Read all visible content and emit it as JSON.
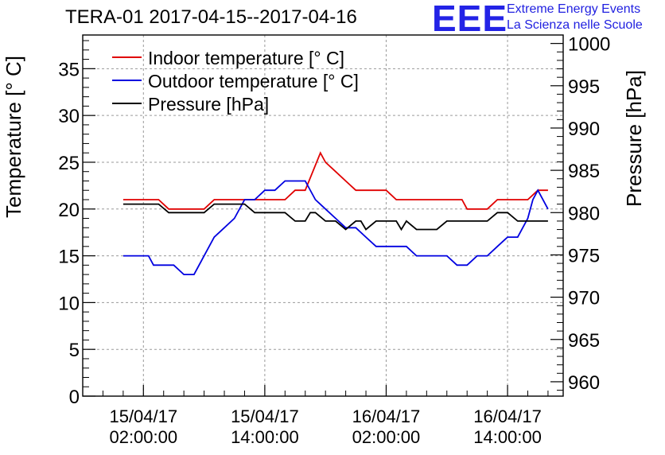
{
  "title": "TERA-01 2017-04-15--2017-04-16",
  "logo": {
    "mark": "EEE",
    "line1": "Extreme Energy Events",
    "line2": "La Scienza nelle Scuole"
  },
  "colors": {
    "indoor": "#e00000",
    "outdoor": "#0000e0",
    "pressure": "#000000",
    "logo": "#2323e6",
    "grid": "#9a9a9a"
  },
  "chart_data": {
    "type": "line",
    "title": "TERA-01 2017-04-15--2017-04-16",
    "xlabel": "",
    "ylabel": "Temperature [° C]",
    "y2label": "Pressure [hPa]",
    "xlim_hours": [
      -6,
      41.5
    ],
    "ylim": [
      0,
      38.6
    ],
    "y2lim": [
      958.3,
      1001
    ],
    "yticks": [
      0,
      5,
      10,
      15,
      20,
      25,
      30,
      35
    ],
    "y2ticks": [
      960,
      965,
      970,
      975,
      980,
      985,
      990,
      995,
      1000
    ],
    "xticks": [
      {
        "hour": 0,
        "date": "15/04/17",
        "time": "02:00:00"
      },
      {
        "hour": 12,
        "date": "15/04/17",
        "time": "14:00:00"
      },
      {
        "hour": 24,
        "date": "16/04/17",
        "time": "02:00:00"
      },
      {
        "hour": 36,
        "date": "16/04/17",
        "time": "14:00:00"
      }
    ],
    "grid": true,
    "legend_position": "top-left",
    "series": [
      {
        "name": "Indoor temperature [° C]",
        "axis": "left",
        "color": "#e00000",
        "x": [
          -2,
          1.5,
          2.5,
          6,
          7,
          8,
          10,
          14,
          15,
          16,
          17.5,
          18,
          19,
          20,
          21,
          22,
          23,
          24,
          25,
          26,
          29,
          31,
          31.5,
          32,
          32.5,
          33.5,
          34,
          35,
          36,
          37,
          38,
          39,
          40
        ],
        "values": [
          21,
          21,
          20,
          20,
          21,
          21,
          21,
          21,
          22,
          22,
          26,
          25,
          24,
          23,
          22,
          22,
          22,
          22,
          21,
          21,
          21,
          21,
          21,
          20,
          20,
          20,
          20,
          21,
          21,
          21,
          21,
          22,
          22
        ]
      },
      {
        "name": "Outdoor temperature [° C]",
        "axis": "left",
        "color": "#0000e0",
        "x": [
          -2,
          0,
          0.5,
          1,
          2,
          3,
          4,
          5,
          6,
          7,
          8,
          9,
          10,
          11,
          12,
          13,
          14,
          15,
          16,
          17,
          18,
          19,
          20,
          21,
          22,
          23,
          24,
          25,
          26,
          27,
          28,
          29,
          30,
          31,
          32,
          33,
          34,
          35,
          36,
          37,
          38,
          38.5,
          39,
          40
        ],
        "values": [
          15,
          15,
          15,
          14,
          14,
          14,
          13,
          13,
          15,
          17,
          18,
          19,
          21,
          21,
          22,
          22,
          23,
          23,
          23,
          21,
          20,
          19,
          18,
          18,
          17,
          16,
          16,
          16,
          16,
          15,
          15,
          15,
          15,
          14,
          14,
          15,
          15,
          16,
          17,
          17,
          19,
          21,
          22,
          20
        ]
      },
      {
        "name": "Pressure [hPa]",
        "axis": "right",
        "color": "#000000",
        "x": [
          -2,
          1.5,
          2.5,
          6,
          7,
          8,
          9,
          10,
          11,
          12,
          13,
          14,
          15,
          16,
          16.5,
          17,
          18,
          19,
          20,
          21,
          21.5,
          22,
          23,
          24,
          25,
          25.5,
          26,
          27,
          28,
          29,
          30,
          31,
          32,
          33,
          34,
          35,
          36,
          37,
          38,
          39,
          40
        ],
        "values": [
          981,
          981,
          980,
          980,
          981,
          981,
          981,
          981,
          980,
          980,
          980,
          980,
          979,
          979,
          980,
          980,
          979,
          979,
          978,
          979,
          979,
          978,
          979,
          979,
          979,
          978,
          979,
          978,
          978,
          978,
          979,
          979,
          979,
          979,
          979,
          980,
          980,
          979,
          979,
          979,
          979
        ]
      }
    ]
  }
}
